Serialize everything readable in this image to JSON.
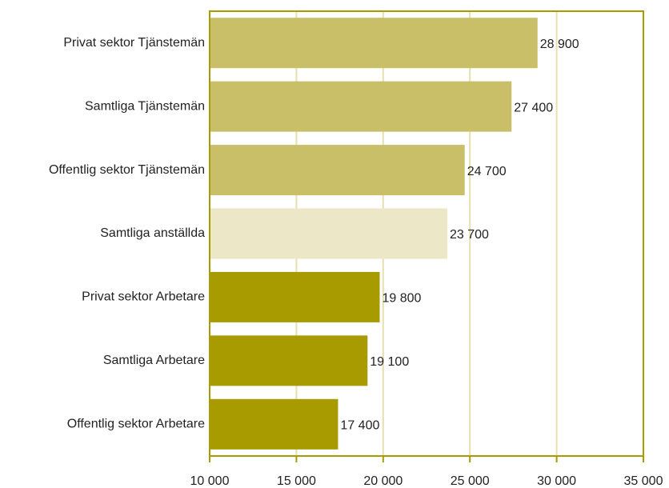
{
  "chart_data": {
    "type": "bar",
    "orientation": "horizontal",
    "categories": [
      "Privat sektor Tjänstemän",
      "Samtliga Tjänstemän",
      "Offentlig sektor Tjänstemän",
      "Samtliga anställda",
      "Privat sektor Arbetare",
      "Samtliga Arbetare",
      "Offentlig sektor Arbetare"
    ],
    "values": [
      28900,
      27400,
      24700,
      23700,
      19800,
      19100,
      17400
    ],
    "value_labels": [
      "28 900",
      "27 400",
      "24 700",
      "23 700",
      "19 800",
      "19 100",
      "17 400"
    ],
    "colors": [
      "#c9bf69",
      "#c9bf69",
      "#c9bf69",
      "#ece7c7",
      "#a89b00",
      "#a89b00",
      "#a89b00"
    ],
    "xlim": [
      10000,
      35000
    ],
    "xticks": [
      {
        "value": 10000,
        "label": "10 000"
      },
      {
        "value": 15000,
        "label": "15 000"
      },
      {
        "value": 20000,
        "label": "20 000"
      },
      {
        "value": 25000,
        "label": "25 000"
      },
      {
        "value": 30000,
        "label": "30 000"
      },
      {
        "value": 35000,
        "label": "35 000"
      }
    ],
    "grid": true
  }
}
